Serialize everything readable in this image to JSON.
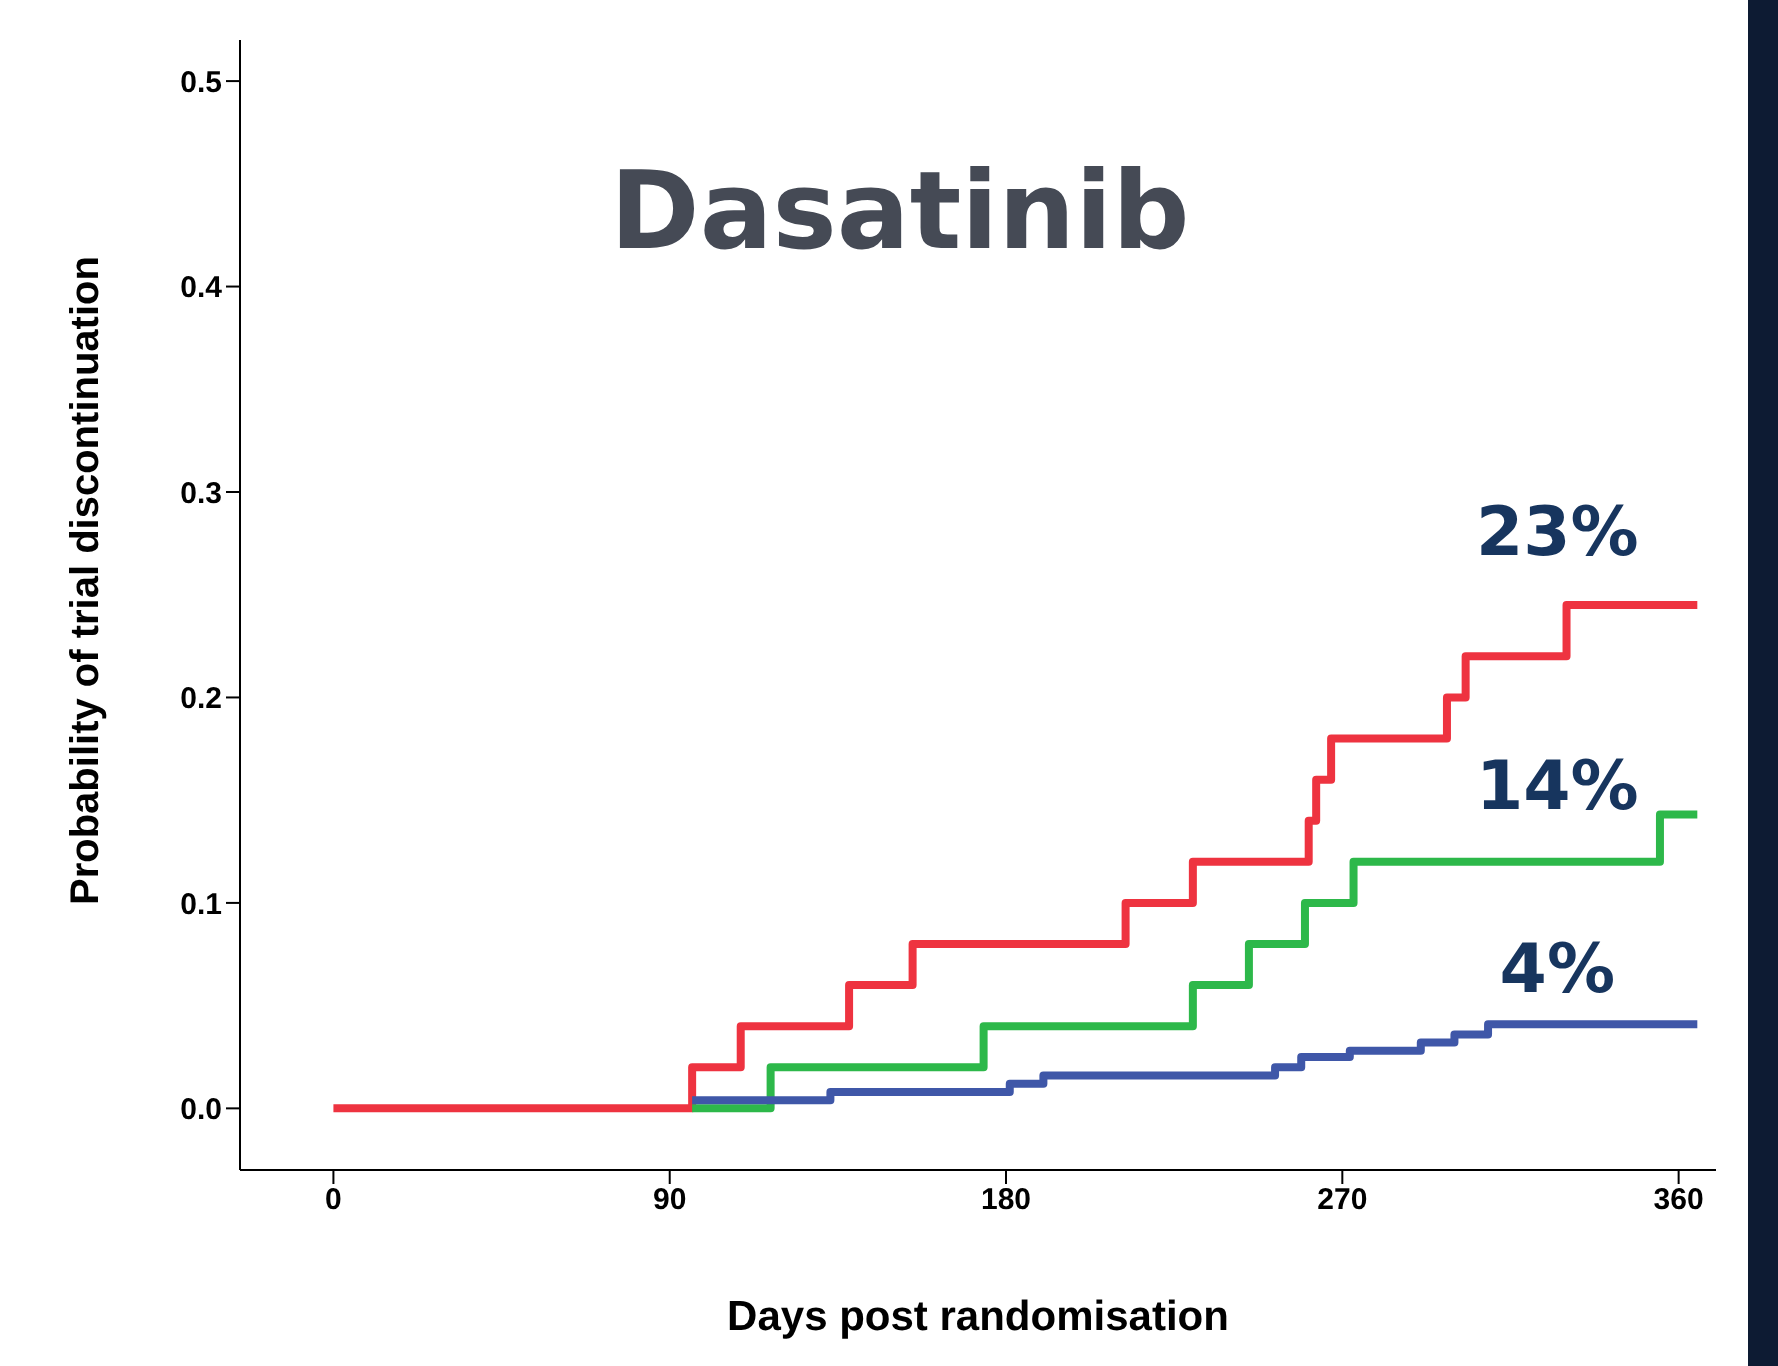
{
  "chart_data": {
    "type": "step",
    "title": "Dasatinib",
    "xlabel": "Days post randomisation",
    "ylabel": "Probability of trial discontinuation",
    "xlim": [
      -25,
      370
    ],
    "xticks": [
      0,
      90,
      180,
      270,
      360
    ],
    "ylim": [
      -0.03,
      0.52
    ],
    "yticks": [
      {
        "value": 0,
        "label": "0.0"
      },
      {
        "value": 0.1,
        "label": "0.1"
      },
      {
        "value": 0.2,
        "label": "0.2"
      },
      {
        "value": 0.3,
        "label": "0.3"
      },
      {
        "value": 0.4,
        "label": "0.4"
      },
      {
        "value": 0.5,
        "label": "0.5"
      }
    ],
    "grid": false,
    "line_style": "solid",
    "series": [
      {
        "color": "#ee3340",
        "x": [
          0,
          96,
          109,
          138,
          155,
          212,
          230,
          261,
          263,
          267,
          298,
          303,
          330,
          365
        ],
        "values": [
          0,
          0.02,
          0.04,
          0.06,
          0.08,
          0.1,
          0.12,
          0.14,
          0.16,
          0.18,
          0.2,
          0.22,
          0.245,
          0.245
        ]
      },
      {
        "color": "#2db84a",
        "x": [
          96,
          117,
          174,
          230,
          245,
          260,
          273,
          355,
          365
        ],
        "values": [
          0,
          0.02,
          0.04,
          0.06,
          0.08,
          0.1,
          0.12,
          0.143,
          0.143
        ]
      },
      {
        "color": "#3f57a8",
        "x": [
          96,
          133,
          181,
          190,
          252,
          259,
          272,
          291,
          300,
          309,
          365
        ],
        "values": [
          0.004,
          0.008,
          0.012,
          0.016,
          0.02,
          0.025,
          0.028,
          0.032,
          0.036,
          0.041,
          0.041
        ]
      }
    ],
    "annotations": [
      "23%",
      "14%",
      "4%"
    ]
  }
}
